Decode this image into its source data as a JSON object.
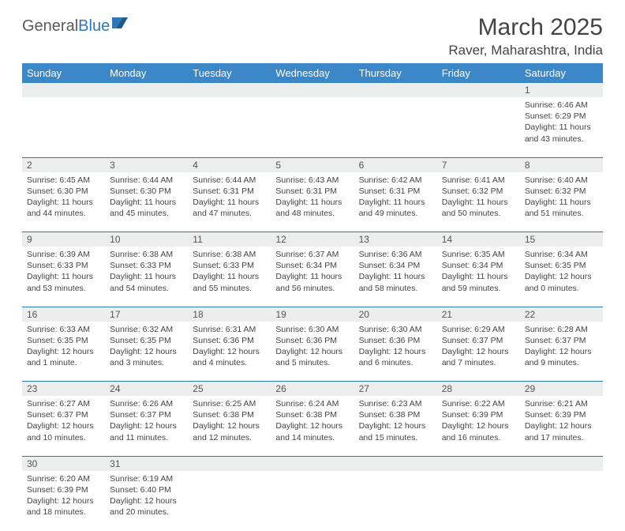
{
  "logo": {
    "text_general": "General",
    "text_blue": "Blue"
  },
  "header": {
    "month_title": "March 2025",
    "location": "Raver, Maharashtra, India"
  },
  "colors": {
    "header_bg": "#3b87c8",
    "header_text": "#ffffff",
    "daynum_bg": "#eceded",
    "rule": "#2f78b8",
    "body_text": "#444444"
  },
  "weekdays": [
    "Sunday",
    "Monday",
    "Tuesday",
    "Wednesday",
    "Thursday",
    "Friday",
    "Saturday"
  ],
  "weeks": [
    [
      null,
      null,
      null,
      null,
      null,
      null,
      {
        "n": "1",
        "sunrise": "Sunrise: 6:46 AM",
        "sunset": "Sunset: 6:29 PM",
        "daylight": "Daylight: 11 hours and 43 minutes."
      }
    ],
    [
      {
        "n": "2",
        "sunrise": "Sunrise: 6:45 AM",
        "sunset": "Sunset: 6:30 PM",
        "daylight": "Daylight: 11 hours and 44 minutes."
      },
      {
        "n": "3",
        "sunrise": "Sunrise: 6:44 AM",
        "sunset": "Sunset: 6:30 PM",
        "daylight": "Daylight: 11 hours and 45 minutes."
      },
      {
        "n": "4",
        "sunrise": "Sunrise: 6:44 AM",
        "sunset": "Sunset: 6:31 PM",
        "daylight": "Daylight: 11 hours and 47 minutes."
      },
      {
        "n": "5",
        "sunrise": "Sunrise: 6:43 AM",
        "sunset": "Sunset: 6:31 PM",
        "daylight": "Daylight: 11 hours and 48 minutes."
      },
      {
        "n": "6",
        "sunrise": "Sunrise: 6:42 AM",
        "sunset": "Sunset: 6:31 PM",
        "daylight": "Daylight: 11 hours and 49 minutes."
      },
      {
        "n": "7",
        "sunrise": "Sunrise: 6:41 AM",
        "sunset": "Sunset: 6:32 PM",
        "daylight": "Daylight: 11 hours and 50 minutes."
      },
      {
        "n": "8",
        "sunrise": "Sunrise: 6:40 AM",
        "sunset": "Sunset: 6:32 PM",
        "daylight": "Daylight: 11 hours and 51 minutes."
      }
    ],
    [
      {
        "n": "9",
        "sunrise": "Sunrise: 6:39 AM",
        "sunset": "Sunset: 6:33 PM",
        "daylight": "Daylight: 11 hours and 53 minutes."
      },
      {
        "n": "10",
        "sunrise": "Sunrise: 6:38 AM",
        "sunset": "Sunset: 6:33 PM",
        "daylight": "Daylight: 11 hours and 54 minutes."
      },
      {
        "n": "11",
        "sunrise": "Sunrise: 6:38 AM",
        "sunset": "Sunset: 6:33 PM",
        "daylight": "Daylight: 11 hours and 55 minutes."
      },
      {
        "n": "12",
        "sunrise": "Sunrise: 6:37 AM",
        "sunset": "Sunset: 6:34 PM",
        "daylight": "Daylight: 11 hours and 56 minutes."
      },
      {
        "n": "13",
        "sunrise": "Sunrise: 6:36 AM",
        "sunset": "Sunset: 6:34 PM",
        "daylight": "Daylight: 11 hours and 58 minutes."
      },
      {
        "n": "14",
        "sunrise": "Sunrise: 6:35 AM",
        "sunset": "Sunset: 6:34 PM",
        "daylight": "Daylight: 11 hours and 59 minutes."
      },
      {
        "n": "15",
        "sunrise": "Sunrise: 6:34 AM",
        "sunset": "Sunset: 6:35 PM",
        "daylight": "Daylight: 12 hours and 0 minutes."
      }
    ],
    [
      {
        "n": "16",
        "sunrise": "Sunrise: 6:33 AM",
        "sunset": "Sunset: 6:35 PM",
        "daylight": "Daylight: 12 hours and 1 minute."
      },
      {
        "n": "17",
        "sunrise": "Sunrise: 6:32 AM",
        "sunset": "Sunset: 6:35 PM",
        "daylight": "Daylight: 12 hours and 3 minutes."
      },
      {
        "n": "18",
        "sunrise": "Sunrise: 6:31 AM",
        "sunset": "Sunset: 6:36 PM",
        "daylight": "Daylight: 12 hours and 4 minutes."
      },
      {
        "n": "19",
        "sunrise": "Sunrise: 6:30 AM",
        "sunset": "Sunset: 6:36 PM",
        "daylight": "Daylight: 12 hours and 5 minutes."
      },
      {
        "n": "20",
        "sunrise": "Sunrise: 6:30 AM",
        "sunset": "Sunset: 6:36 PM",
        "daylight": "Daylight: 12 hours and 6 minutes."
      },
      {
        "n": "21",
        "sunrise": "Sunrise: 6:29 AM",
        "sunset": "Sunset: 6:37 PM",
        "daylight": "Daylight: 12 hours and 7 minutes."
      },
      {
        "n": "22",
        "sunrise": "Sunrise: 6:28 AM",
        "sunset": "Sunset: 6:37 PM",
        "daylight": "Daylight: 12 hours and 9 minutes."
      }
    ],
    [
      {
        "n": "23",
        "sunrise": "Sunrise: 6:27 AM",
        "sunset": "Sunset: 6:37 PM",
        "daylight": "Daylight: 12 hours and 10 minutes."
      },
      {
        "n": "24",
        "sunrise": "Sunrise: 6:26 AM",
        "sunset": "Sunset: 6:37 PM",
        "daylight": "Daylight: 12 hours and 11 minutes."
      },
      {
        "n": "25",
        "sunrise": "Sunrise: 6:25 AM",
        "sunset": "Sunset: 6:38 PM",
        "daylight": "Daylight: 12 hours and 12 minutes."
      },
      {
        "n": "26",
        "sunrise": "Sunrise: 6:24 AM",
        "sunset": "Sunset: 6:38 PM",
        "daylight": "Daylight: 12 hours and 14 minutes."
      },
      {
        "n": "27",
        "sunrise": "Sunrise: 6:23 AM",
        "sunset": "Sunset: 6:38 PM",
        "daylight": "Daylight: 12 hours and 15 minutes."
      },
      {
        "n": "28",
        "sunrise": "Sunrise: 6:22 AM",
        "sunset": "Sunset: 6:39 PM",
        "daylight": "Daylight: 12 hours and 16 minutes."
      },
      {
        "n": "29",
        "sunrise": "Sunrise: 6:21 AM",
        "sunset": "Sunset: 6:39 PM",
        "daylight": "Daylight: 12 hours and 17 minutes."
      }
    ],
    [
      {
        "n": "30",
        "sunrise": "Sunrise: 6:20 AM",
        "sunset": "Sunset: 6:39 PM",
        "daylight": "Daylight: 12 hours and 18 minutes."
      },
      {
        "n": "31",
        "sunrise": "Sunrise: 6:19 AM",
        "sunset": "Sunset: 6:40 PM",
        "daylight": "Daylight: 12 hours and 20 minutes."
      },
      null,
      null,
      null,
      null,
      null
    ]
  ]
}
